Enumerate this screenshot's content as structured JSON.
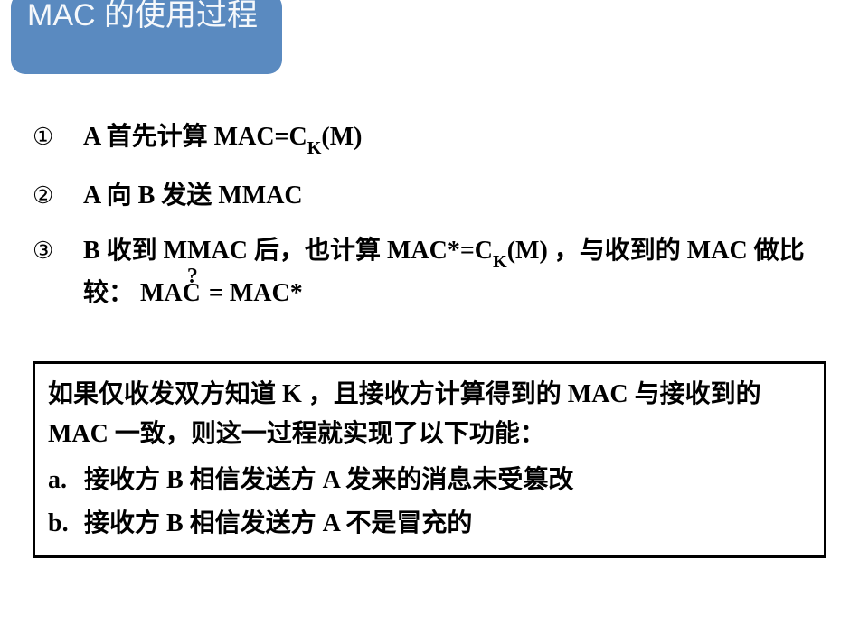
{
  "title": "MAC 的使用过程",
  "title_box": {
    "bg": "#5a8ac0",
    "fg": "#f5f8fb",
    "radius": 16
  },
  "steps": {
    "markers": [
      "①",
      "②",
      "③"
    ],
    "s1_pre": "A 首先计算 MAC=C",
    "s1_subK": "K",
    "s1_post": "(M)",
    "s2": "A 向 B 发送 MMAC",
    "s3_pre": "B 收到 MMAC 后，也计算 MAC*=C",
    "s3_subK": "K",
    "s3_mid": "(M) ，与收到的 MAC 做比较： MA",
    "s3_overC": "C",
    "s3_q": "?",
    "s3_post": " = MAC*"
  },
  "summary": {
    "intro": "如果仅收发双方知道 K ，且接收方计算得到的 MAC 与接收到的 MAC 一致，则这一过程就实现了以下功能：",
    "a_label": "a.",
    "a_text": "接收方 B 相信发送方 A 发来的消息未受篡改",
    "b_label": "b.",
    "b_text": "接收方 B 相信发送方 A 不是冒充的"
  },
  "colors": {
    "text": "#000000",
    "bg": "#ffffff",
    "border": "#000000"
  }
}
